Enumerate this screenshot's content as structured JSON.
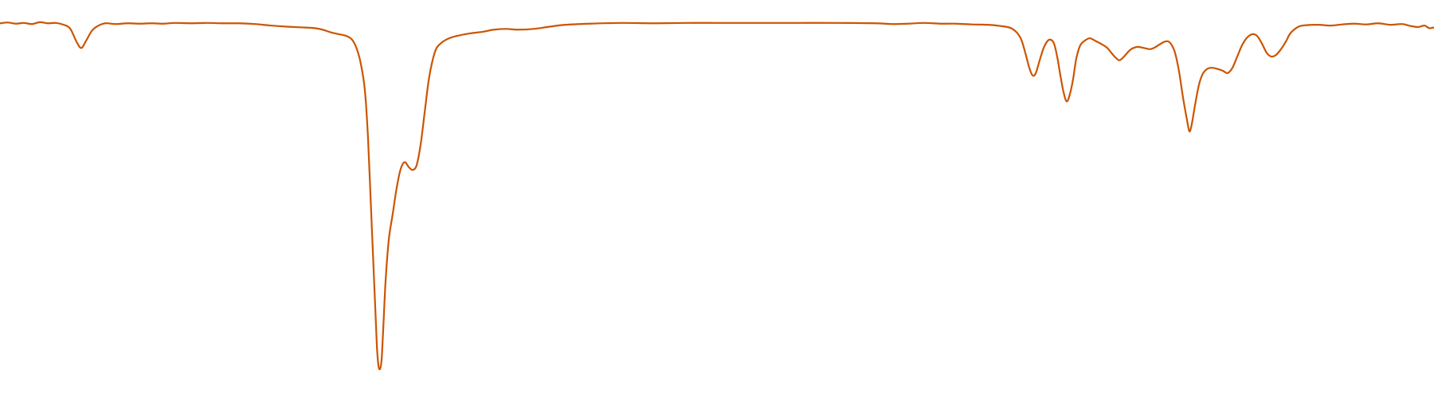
{
  "chart_data": {
    "type": "line",
    "title": "",
    "xlabel": "",
    "ylabel": "",
    "x_range": [
      0,
      1800
    ],
    "y_range": [
      0,
      100
    ],
    "grid": false,
    "legend": "none",
    "axes_visible": false,
    "series": [
      {
        "color": "#cc5500",
        "points": [
          [
            0,
            95.9
          ],
          [
            10,
            96.1
          ],
          [
            20,
            95.8
          ],
          [
            30,
            96.0
          ],
          [
            40,
            95.7
          ],
          [
            50,
            96.2
          ],
          [
            60,
            95.9
          ],
          [
            70,
            96.0
          ],
          [
            80,
            95.5
          ],
          [
            88,
            94.5
          ],
          [
            96,
            91.0
          ],
          [
            102,
            89.3
          ],
          [
            108,
            91.2
          ],
          [
            115,
            93.8
          ],
          [
            122,
            95.1
          ],
          [
            132,
            95.9
          ],
          [
            145,
            95.7
          ],
          [
            160,
            95.9
          ],
          [
            175,
            95.8
          ],
          [
            190,
            95.9
          ],
          [
            205,
            95.8
          ],
          [
            220,
            96.0
          ],
          [
            240,
            95.9
          ],
          [
            260,
            96.0
          ],
          [
            280,
            95.9
          ],
          [
            300,
            95.9
          ],
          [
            320,
            95.7
          ],
          [
            340,
            95.3
          ],
          [
            360,
            95.0
          ],
          [
            380,
            94.8
          ],
          [
            395,
            94.6
          ],
          [
            405,
            94.2
          ],
          [
            415,
            93.5
          ],
          [
            425,
            93.0
          ],
          [
            435,
            92.5
          ],
          [
            442,
            91.5
          ],
          [
            448,
            89.0
          ],
          [
            453,
            85.0
          ],
          [
            458,
            78.0
          ],
          [
            462,
            65.0
          ],
          [
            466,
            45.0
          ],
          [
            470,
            25.0
          ],
          [
            473,
            10.0
          ],
          [
            475,
            4.5
          ],
          [
            477,
            3.5
          ],
          [
            479,
            6.0
          ],
          [
            481,
            14.0
          ],
          [
            484,
            27.0
          ],
          [
            488,
            38.0
          ],
          [
            493,
            45.0
          ],
          [
            498,
            52.0
          ],
          [
            503,
            57.0
          ],
          [
            508,
            58.8
          ],
          [
            513,
            57.5
          ],
          [
            518,
            56.7
          ],
          [
            523,
            58.0
          ],
          [
            528,
            63.5
          ],
          [
            533,
            72.0
          ],
          [
            538,
            80.5
          ],
          [
            543,
            86.0
          ],
          [
            548,
            89.3
          ],
          [
            556,
            91.0
          ],
          [
            565,
            92.0
          ],
          [
            575,
            92.6
          ],
          [
            590,
            93.2
          ],
          [
            605,
            93.6
          ],
          [
            620,
            94.2
          ],
          [
            635,
            94.4
          ],
          [
            650,
            94.2
          ],
          [
            670,
            94.4
          ],
          [
            690,
            95.0
          ],
          [
            710,
            95.5
          ],
          [
            740,
            95.8
          ],
          [
            780,
            96.0
          ],
          [
            820,
            95.9
          ],
          [
            860,
            96.0
          ],
          [
            900,
            96.0
          ],
          [
            950,
            96.0
          ],
          [
            1000,
            96.0
          ],
          [
            1050,
            96.0
          ],
          [
            1100,
            95.9
          ],
          [
            1120,
            95.7
          ],
          [
            1140,
            95.8
          ],
          [
            1160,
            96.0
          ],
          [
            1180,
            95.8
          ],
          [
            1200,
            95.8
          ],
          [
            1220,
            95.6
          ],
          [
            1240,
            95.5
          ],
          [
            1255,
            95.2
          ],
          [
            1268,
            94.7
          ],
          [
            1276,
            93.5
          ],
          [
            1282,
            91.5
          ],
          [
            1287,
            88.0
          ],
          [
            1292,
            84.0
          ],
          [
            1296,
            82.0
          ],
          [
            1300,
            82.5
          ],
          [
            1305,
            86.0
          ],
          [
            1310,
            89.3
          ],
          [
            1315,
            91.2
          ],
          [
            1319,
            91.5
          ],
          [
            1323,
            90.5
          ],
          [
            1327,
            87.0
          ],
          [
            1331,
            82.0
          ],
          [
            1335,
            77.5
          ],
          [
            1339,
            75.0
          ],
          [
            1343,
            77.0
          ],
          [
            1347,
            81.0
          ],
          [
            1351,
            86.5
          ],
          [
            1356,
            90.0
          ],
          [
            1362,
            91.3
          ],
          [
            1368,
            91.9
          ],
          [
            1375,
            91.2
          ],
          [
            1383,
            90.3
          ],
          [
            1390,
            89.3
          ],
          [
            1395,
            88.0
          ],
          [
            1400,
            86.8
          ],
          [
            1405,
            86.0
          ],
          [
            1410,
            86.8
          ],
          [
            1415,
            88.0
          ],
          [
            1420,
            89.0
          ],
          [
            1428,
            89.6
          ],
          [
            1436,
            89.3
          ],
          [
            1444,
            89.0
          ],
          [
            1450,
            89.5
          ],
          [
            1456,
            90.3
          ],
          [
            1462,
            91.0
          ],
          [
            1467,
            91.0
          ],
          [
            1471,
            90.0
          ],
          [
            1475,
            88.0
          ],
          [
            1480,
            83.0
          ],
          [
            1485,
            76.0
          ],
          [
            1490,
            70.0
          ],
          [
            1493,
            67.0
          ],
          [
            1496,
            69.0
          ],
          [
            1500,
            74.0
          ],
          [
            1505,
            79.5
          ],
          [
            1510,
            82.5
          ],
          [
            1516,
            83.8
          ],
          [
            1522,
            84.0
          ],
          [
            1528,
            83.7
          ],
          [
            1535,
            83.2
          ],
          [
            1541,
            82.6
          ],
          [
            1547,
            84.0
          ],
          [
            1553,
            87.0
          ],
          [
            1559,
            90.0
          ],
          [
            1565,
            92.0
          ],
          [
            1572,
            93.0
          ],
          [
            1578,
            92.5
          ],
          [
            1584,
            90.5
          ],
          [
            1590,
            88.0
          ],
          [
            1596,
            87.0
          ],
          [
            1602,
            87.5
          ],
          [
            1608,
            89.0
          ],
          [
            1614,
            91.0
          ],
          [
            1620,
            93.3
          ],
          [
            1630,
            95.0
          ],
          [
            1640,
            95.4
          ],
          [
            1655,
            95.5
          ],
          [
            1670,
            95.3
          ],
          [
            1685,
            95.6
          ],
          [
            1700,
            95.8
          ],
          [
            1715,
            95.6
          ],
          [
            1730,
            95.9
          ],
          [
            1745,
            95.5
          ],
          [
            1760,
            95.7
          ],
          [
            1770,
            95.2
          ],
          [
            1780,
            94.9
          ],
          [
            1788,
            95.3
          ],
          [
            1794,
            94.6
          ],
          [
            1800,
            94.8
          ]
        ]
      }
    ]
  }
}
